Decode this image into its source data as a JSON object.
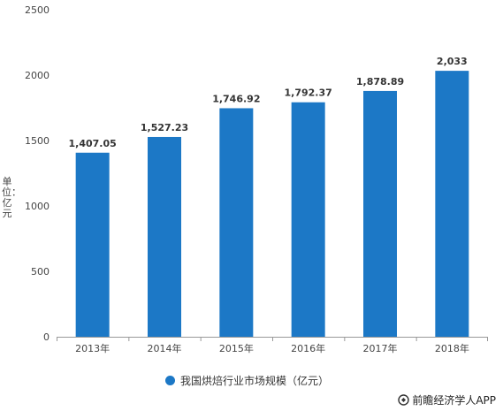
{
  "chart_data": {
    "type": "bar",
    "categories": [
      "2013年",
      "2014年",
      "2015年",
      "2016年",
      "2017年",
      "2018年"
    ],
    "values": [
      1407.05,
      1527.23,
      1746.92,
      1792.37,
      1878.89,
      2033
    ],
    "data_labels": [
      "1,407.05",
      "1,527.23",
      "1,746.92",
      "1,792.37",
      "1,878.89",
      "2,033"
    ],
    "series": [
      {
        "name": "我国烘焙行业市场规模（亿元）",
        "values": [
          1407.05,
          1527.23,
          1746.92,
          1792.37,
          1878.89,
          2033
        ]
      }
    ],
    "ylabel": "单位：亿元",
    "xlabel": "",
    "ylim": [
      0,
      2500
    ],
    "yticks": [
      0,
      500,
      1000,
      1500,
      2000,
      2500
    ],
    "grid": false,
    "legend_position": "bottom",
    "bar_color": "#1c78c6"
  },
  "legend": {
    "label": "我国烘焙行业市场规模（亿元）"
  },
  "footer": {
    "source": "前瞻经济学人APP"
  }
}
